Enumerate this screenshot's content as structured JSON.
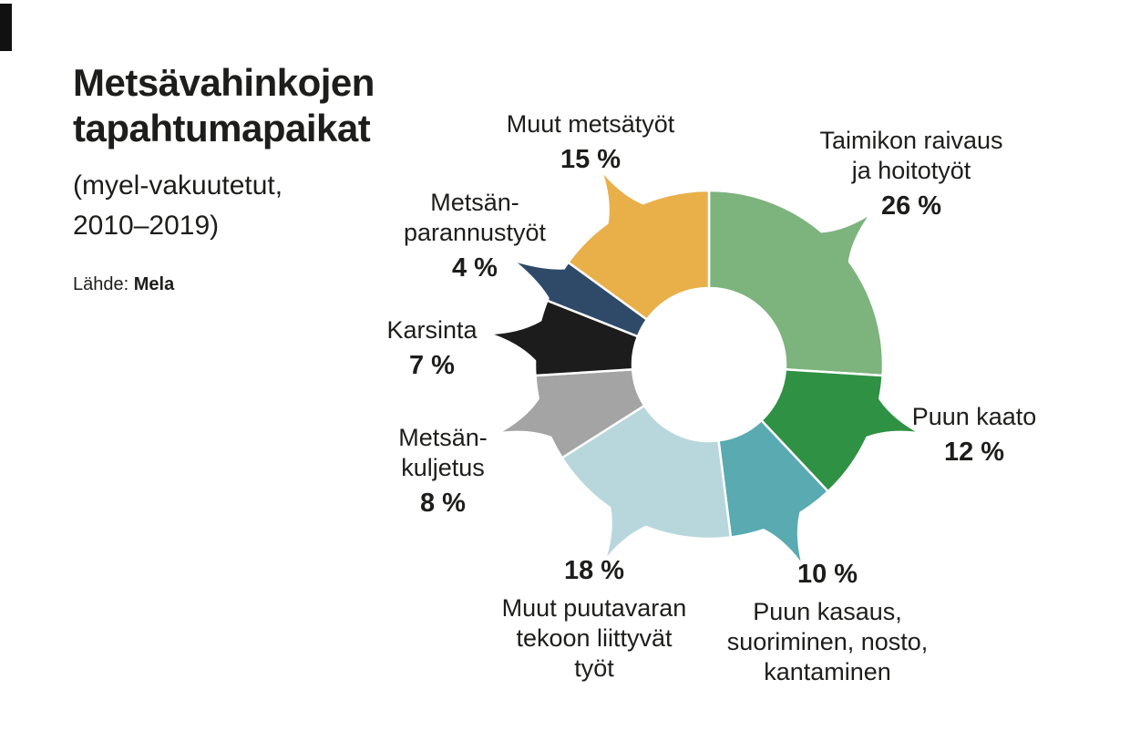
{
  "header": {
    "title_line1": "Metsävahinkojen",
    "title_line2": "tapahtumapaikat",
    "subtitle_line1": "(myel-vakuutetut,",
    "subtitle_line2": "2010–2019)",
    "source_prefix": "Lähde:",
    "source_name": "Mela"
  },
  "chart_data": {
    "type": "pie",
    "variant": "donut",
    "title": "Metsävahinkojen tapahtumapaikat",
    "subtitle": "(myel-vakuutetut, 2010–2019)",
    "source": "Lähde: Mela",
    "start_angle_deg": 0,
    "direction": "clockwise",
    "legend_position": "callout-labels",
    "background": "#ffffff",
    "text_color": "#1d1d1b",
    "slices": [
      {
        "id": "taimikon-raivaus",
        "label": "Taimikon raivaus ja hoitotyöt",
        "label_lines": [
          "Taimikon raivaus",
          "ja hoitotyöt"
        ],
        "value": 26,
        "pct_label": "26 %",
        "color": "#7db37d",
        "tail_angle_deg": 47
      },
      {
        "id": "puun-kaato",
        "label": "Puun kaato",
        "label_lines": [
          "Puun kaato"
        ],
        "value": 12,
        "pct_label": "12 %",
        "color": "#2f9143",
        "tail_angle_deg": 108
      },
      {
        "id": "puun-kasaus",
        "label": "Puun kasaus, suoriminen, nosto, kantaminen",
        "label_lines": [
          "Puun kasaus,",
          "suoriminen, nosto,",
          "kantaminen"
        ],
        "value": 10,
        "pct_label": "10 %",
        "color": "#59aab1",
        "tail_angle_deg": 155
      },
      {
        "id": "muut-puutavaran",
        "label": "Muut puutavaran tekoon liittyvät työt",
        "label_lines": [
          "Muut puutavaran",
          "tekoon liittyvät",
          "työt"
        ],
        "value": 18,
        "pct_label": "18 %",
        "color": "#b8d7dc",
        "tail_angle_deg": 208
      },
      {
        "id": "metsankuljetus",
        "label": "Metsänkuljetus",
        "label_lines": [
          "Metsän-",
          "kuljetus"
        ],
        "value": 8,
        "pct_label": "8 %",
        "color": "#a4a4a4",
        "tail_angle_deg": 252
      },
      {
        "id": "karsinta",
        "label": "Karsinta",
        "label_lines": [
          "Karsinta"
        ],
        "value": 7,
        "pct_label": "7 %",
        "color": "#1c1c1c",
        "tail_angle_deg": 278
      },
      {
        "id": "metsanparannustyot",
        "label": "Metsänparannustyöt",
        "label_lines": [
          "Metsän-",
          "parannustyöt"
        ],
        "value": 4,
        "pct_label": "4 %",
        "color": "#2f4a69",
        "tail_angle_deg": 298
      },
      {
        "id": "muut-metsatyot",
        "label": "Muut metsätyöt",
        "label_lines": [
          "Muut metsätyöt"
        ],
        "value": 15,
        "pct_label": "15 %",
        "color": "#e9b04a",
        "tail_angle_deg": 331
      }
    ]
  }
}
